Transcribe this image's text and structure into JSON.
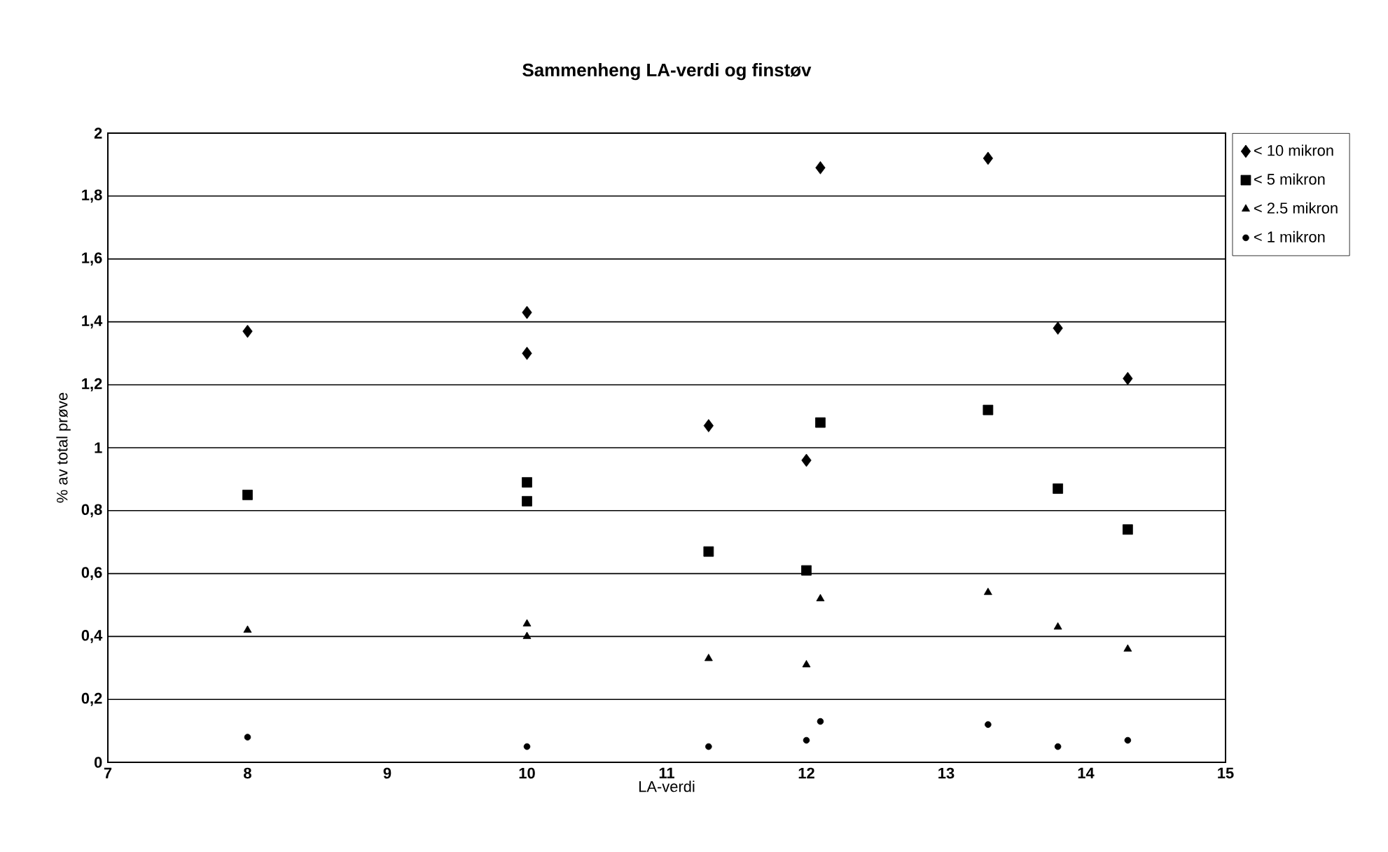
{
  "chart_data": {
    "type": "scatter",
    "title": "Sammenheng LA-verdi og finstøv",
    "xlabel": "LA-verdi",
    "ylabel": "% av total prøve",
    "xlim": [
      7,
      15
    ],
    "xticks": [
      7,
      8,
      9,
      10,
      11,
      12,
      13,
      14,
      15
    ],
    "ylim": [
      0,
      2
    ],
    "yticks": [
      0,
      {
        "value": 0.2,
        "label": "0,2"
      },
      {
        "value": 0.4,
        "label": "0,4"
      },
      {
        "value": 0.6,
        "label": "0,6"
      },
      {
        "value": 0.8,
        "label": "0,8"
      },
      1,
      {
        "value": 1.2,
        "label": "1,2"
      },
      {
        "value": 1.4,
        "label": "1,4"
      },
      {
        "value": 1.6,
        "label": "1,6"
      },
      {
        "value": 1.8,
        "label": "1,8"
      },
      2
    ],
    "grid": "y",
    "legend": "right",
    "series": [
      {
        "name": "< 10 mikron",
        "color": "#000000",
        "marker": "diamond",
        "x": [
          8.0,
          10.0,
          10.0,
          11.3,
          12.0,
          12.1,
          13.3,
          13.8,
          14.3
        ],
        "values": [
          1.37,
          1.43,
          1.3,
          1.07,
          0.96,
          1.89,
          1.92,
          1.38,
          1.22
        ]
      },
      {
        "name": "< 5 mikron",
        "color": "#000000",
        "marker": "square",
        "x": [
          8.0,
          10.0,
          10.0,
          11.3,
          12.0,
          12.1,
          13.3,
          13.8,
          14.3
        ],
        "values": [
          0.85,
          0.89,
          0.83,
          0.67,
          0.61,
          1.08,
          1.12,
          0.87,
          0.74
        ]
      },
      {
        "name": "< 2.5 mikron",
        "color": "#000000",
        "marker": "triangle",
        "x": [
          8.0,
          10.0,
          10.0,
          11.3,
          12.0,
          12.1,
          13.3,
          13.8,
          14.3
        ],
        "values": [
          0.42,
          0.44,
          0.4,
          0.33,
          0.31,
          0.52,
          0.54,
          0.43,
          0.36
        ]
      },
      {
        "name": "< 1 mikron",
        "color": "#000000",
        "marker": "circle",
        "x": [
          8.0,
          10.0,
          11.3,
          12.0,
          12.1,
          13.3,
          13.8,
          14.3
        ],
        "values": [
          0.08,
          0.05,
          0.05,
          0.07,
          0.13,
          0.12,
          0.05,
          0.07
        ]
      }
    ]
  }
}
